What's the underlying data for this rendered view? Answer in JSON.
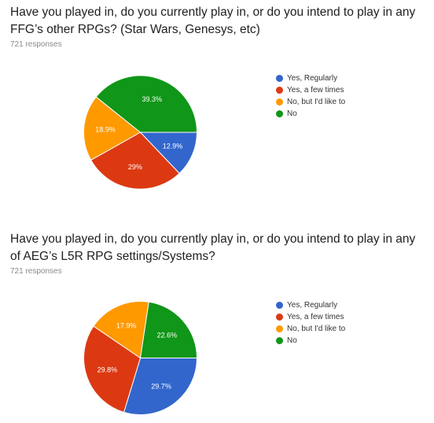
{
  "chart_data": [
    {
      "type": "pie",
      "title": "Have you played in, do you currently play in, or do you intend to play in any FFG’s other RPGs? (Star Wars, Genesys, etc)",
      "responses": "721 responses",
      "categories": [
        "Yes, Regularly",
        "Yes, a few times",
        "No, but I'd like to",
        "No"
      ],
      "values": [
        12.9,
        29,
        18.9,
        39.3
      ],
      "labels": [
        "12.9%",
        "29%",
        "18.9%",
        "39.3%"
      ],
      "colors": [
        "#3366cc",
        "#dc3912",
        "#ff9900",
        "#109618"
      ],
      "legend_position": "right"
    },
    {
      "type": "pie",
      "title": "Have you played in, do you currently play in, or do you intend to play in any of AEG’s L5R RPG settings/Systems?",
      "responses": "721 responses",
      "categories": [
        "Yes, Regularly",
        "Yes, a few times",
        "No, but I'd like to",
        "No"
      ],
      "values": [
        29.7,
        29.8,
        17.9,
        22.6
      ],
      "labels": [
        "29.7%",
        "29.8%",
        "17.9%",
        "22.6%"
      ],
      "colors": [
        "#3366cc",
        "#dc3912",
        "#ff9900",
        "#109618"
      ],
      "legend_position": "right"
    }
  ]
}
